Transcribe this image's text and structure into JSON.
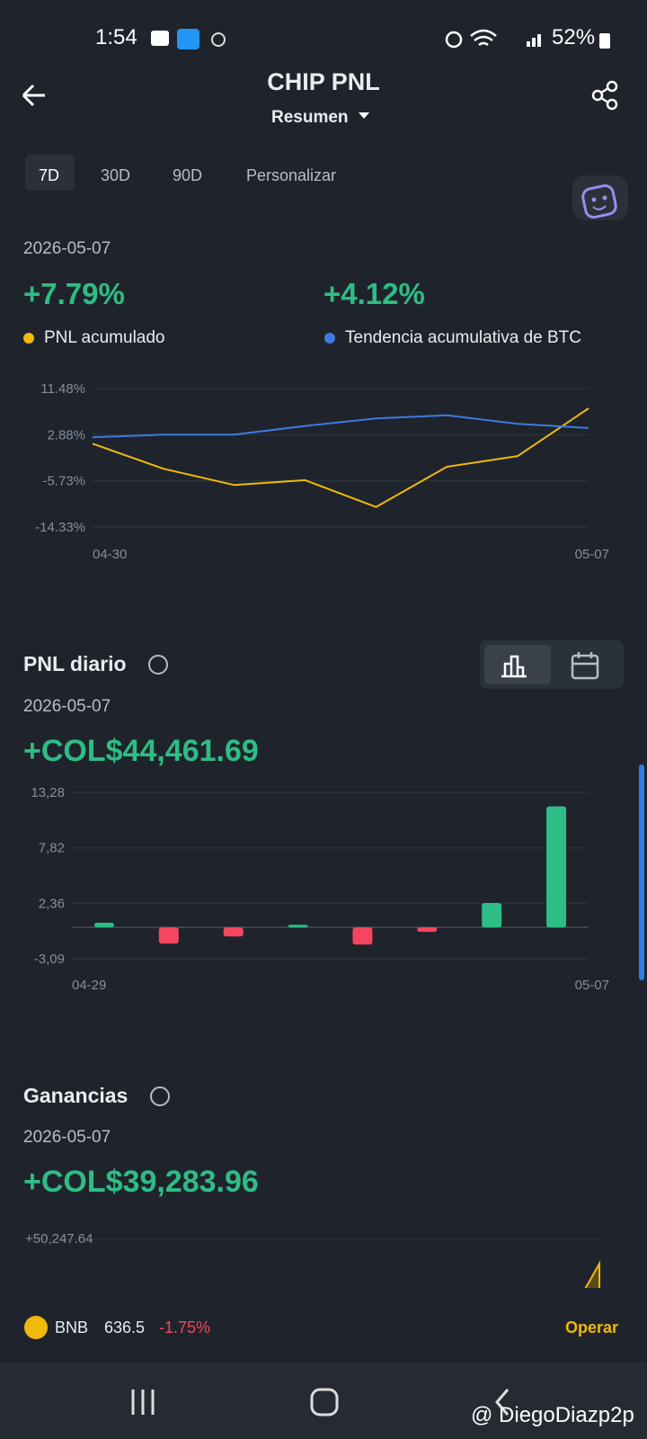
{
  "status_bar": {
    "time": "1:54",
    "battery": "52%"
  },
  "header": {
    "title": "CHIP PNL",
    "subtitle": "Resumen"
  },
  "tabs": [
    "7D",
    "30D",
    "90D",
    "Personalizar"
  ],
  "cumulative": {
    "date": "2026-05-07",
    "stats": [
      {
        "value": "+7.79%",
        "label": "PNL acumulado"
      },
      {
        "value": "+4.12%",
        "label": "Tendencia acumulativa de BTC"
      }
    ],
    "chart": {
      "type": "line",
      "categories": [
        "04-30",
        null,
        null,
        null,
        null,
        null,
        null,
        "05-07"
      ],
      "series": [
        {
          "name": "PNL acumulado",
          "color": "#f0b90b",
          "values": [
            1.21,
            -3.47,
            -6.5,
            -5.6,
            -10.6,
            -3.1,
            -1.1,
            7.79
          ]
        },
        {
          "name": "Tendencia acumulativa de BTC",
          "color": "#3d7be0",
          "values": [
            2.4,
            2.88,
            2.9,
            4.5,
            5.9,
            6.5,
            4.9,
            4.12
          ]
        }
      ],
      "ylim": [
        -14.33,
        11.48
      ],
      "yticks": [
        {
          "value": 11.48,
          "label": "11.48%"
        },
        {
          "value": 2.88,
          "label": "2.88%"
        },
        {
          "value": -5.73,
          "label": "-5.73%"
        },
        {
          "value": -14.33,
          "label": "-14.33%"
        }
      ],
      "grid": true
    }
  },
  "daily": {
    "title": "PNL diario",
    "date": "2026-05-07",
    "total": "+COL$44,461.69",
    "chart": {
      "type": "bar",
      "categories": [
        "04-29",
        null,
        null,
        null,
        null,
        null,
        null,
        "05-07"
      ],
      "values": [
        0.45,
        -1.6,
        -0.9,
        0.25,
        -1.7,
        -0.45,
        2.4,
        11.9
      ],
      "positive_color": "#2ebd85",
      "negative_color": "#f6465d",
      "ylim": [
        -3.09,
        13.28
      ],
      "yticks": [
        {
          "value": 13.28,
          "label": "13,28"
        },
        {
          "value": 7.82,
          "label": "7,82"
        },
        {
          "value": 2.36,
          "label": "2,36"
        },
        {
          "value": -3.09,
          "label": "-3,09"
        }
      ],
      "grid": true
    }
  },
  "earnings": {
    "title": "Ganancias",
    "date": "2026-05-07",
    "total": "+COL$39,283.96",
    "top_tick": "+50,247.64"
  },
  "ticker": {
    "symbol": "BNB",
    "price": "636.5",
    "change": "-1.75%",
    "action": "Operar"
  },
  "watermark": "@ DiegoDiazp2p"
}
